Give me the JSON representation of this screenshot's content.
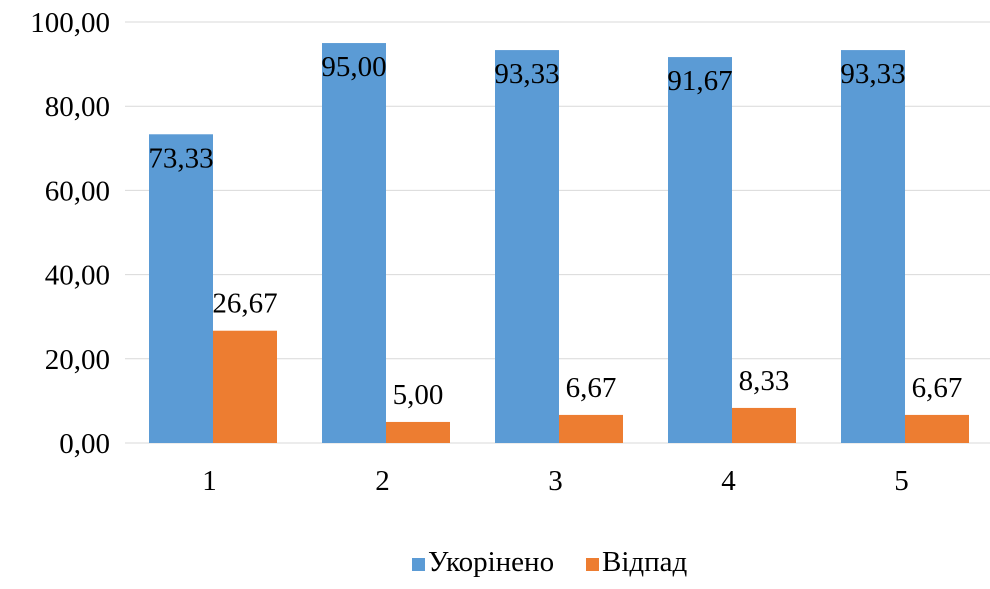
{
  "chart_data": {
    "type": "bar",
    "categories": [
      "1",
      "2",
      "3",
      "4",
      "5"
    ],
    "series": [
      {
        "name": "Укорінено",
        "color": "#5b9bd5",
        "values": [
          73.33,
          95.0,
          93.33,
          91.67,
          93.33
        ],
        "labels": [
          "73,33",
          "95,00",
          "93,33",
          "91,67",
          "93,33"
        ]
      },
      {
        "name": "Відпад",
        "color": "#ed7d31",
        "values": [
          26.67,
          5.0,
          6.67,
          8.33,
          6.67
        ],
        "labels": [
          "26,67",
          "5,00",
          "6,67",
          "8,33",
          "6,67"
        ]
      }
    ],
    "ylim": [
      0,
      100
    ],
    "yticks": [
      0,
      20,
      40,
      60,
      80,
      100
    ],
    "ytick_labels": [
      "0,00",
      "20,00",
      "40,00",
      "60,00",
      "80,00",
      "100,00"
    ],
    "title": "",
    "xlabel": "",
    "ylabel": "",
    "grid": true,
    "legend_position": "bottom"
  }
}
